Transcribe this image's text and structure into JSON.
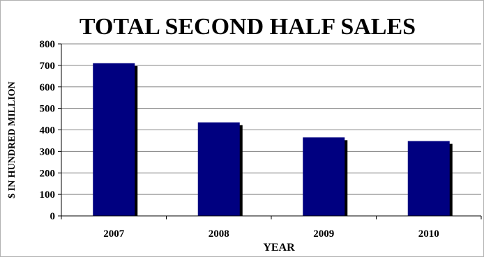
{
  "chart_data": {
    "type": "bar",
    "title": "TOTAL SECOND HALF SALES",
    "xlabel": "YEAR",
    "ylabel": "$ IN HUNDRED MILLION",
    "categories": [
      "2007",
      "2008",
      "2009",
      "2010"
    ],
    "values": [
      710,
      435,
      365,
      348
    ],
    "ylim": [
      0,
      800
    ],
    "yticks": [
      0,
      100,
      200,
      300,
      400,
      500,
      600,
      700,
      800
    ],
    "grid": true,
    "legend": "none",
    "colors": {
      "bar": "#000080",
      "shadow": "#000000",
      "grid": "#808080"
    }
  }
}
